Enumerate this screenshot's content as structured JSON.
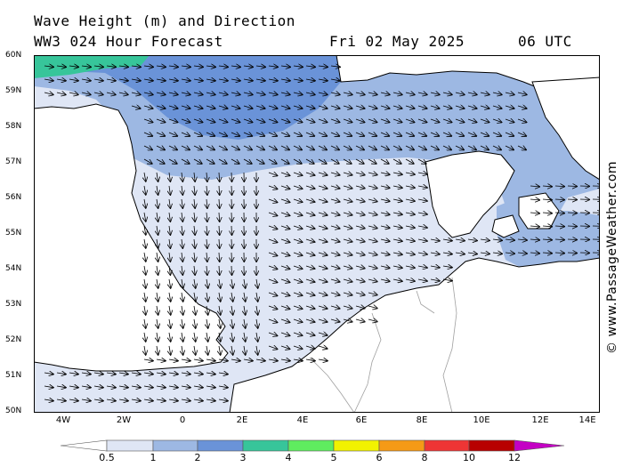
{
  "header": {
    "title_line1": "Wave Height (m) and Direction",
    "title_line2": "WW3 024 Hour Forecast",
    "date": "Fri 02 May 2025",
    "time": "06 UTC"
  },
  "credit": "© www.PassageWeather.com",
  "map": {
    "lat_labels": [
      "60N",
      "59N",
      "58N",
      "57N",
      "56N",
      "55N",
      "54N",
      "53N",
      "52N",
      "51N",
      "50N"
    ],
    "lon_labels": [
      "4W",
      "2W",
      "0",
      "2E",
      "4E",
      "6E",
      "8E",
      "10E",
      "12E",
      "14E"
    ],
    "region": "North Sea",
    "land_color": "#ffffff",
    "coast_color": "#000000",
    "border_color": "#a0a0a0"
  },
  "colorbar": {
    "labels": [
      "0.5",
      "1",
      "2",
      "3",
      "4",
      "5",
      "6",
      "8",
      "10",
      "12"
    ],
    "colors": [
      "#ffffff",
      "#dfe6f5",
      "#9db8e3",
      "#6a93d8",
      "#37c59a",
      "#5fec5f",
      "#f2f200",
      "#f59a16",
      "#ee3535",
      "#b80000",
      "#c400c4"
    ]
  }
}
